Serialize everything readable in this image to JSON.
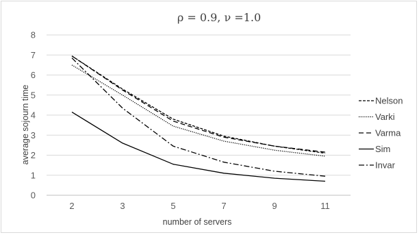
{
  "chart_data": {
    "type": "line",
    "title": "ρ = 0.9, ν =1.0",
    "xlabel": "number  of servers",
    "ylabel": "average sojourn time",
    "categories": [
      "2",
      "3",
      "5",
      "7",
      "9",
      "11"
    ],
    "ylim": [
      0,
      8
    ],
    "yticks": [
      "0",
      "1",
      "2",
      "3",
      "4",
      "5",
      "6",
      "7",
      "8"
    ],
    "grid": true,
    "legend_position": "right",
    "series": [
      {
        "name": "Nelson",
        "dash": "short-dash",
        "values": [
          6.95,
          5.3,
          3.8,
          2.95,
          2.45,
          2.1
        ]
      },
      {
        "name": "Varki",
        "dash": "dotted",
        "values": [
          6.5,
          5.0,
          3.45,
          2.7,
          2.25,
          1.95
        ]
      },
      {
        "name": "Varma",
        "dash": "long-dash",
        "values": [
          6.95,
          5.25,
          3.7,
          2.9,
          2.45,
          2.15
        ]
      },
      {
        "name": "Sim",
        "dash": "solid",
        "values": [
          4.15,
          2.6,
          1.55,
          1.1,
          0.85,
          0.7
        ]
      },
      {
        "name": "Invar",
        "dash": "dash-dot",
        "values": [
          6.85,
          4.35,
          2.45,
          1.65,
          1.2,
          0.95
        ]
      }
    ],
    "colors": {
      "line": "#000000",
      "grid": "#d9d9d9",
      "text": "#595959"
    }
  }
}
